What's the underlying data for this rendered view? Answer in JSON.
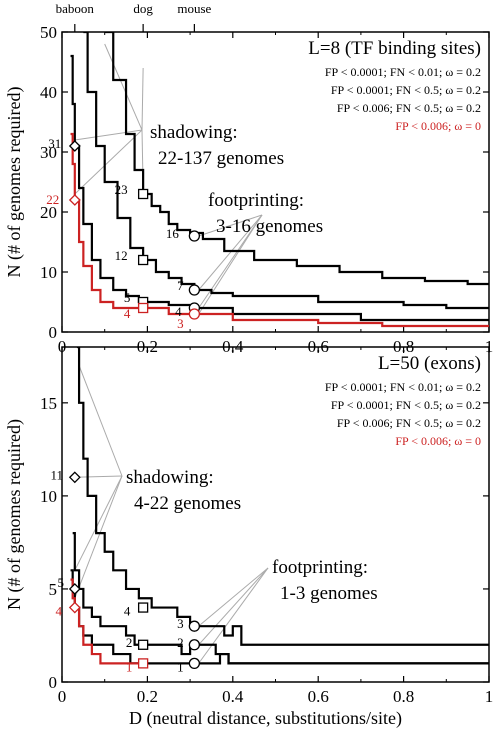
{
  "chart_data": [
    {
      "type": "line",
      "title": "L=8 (TF binding sites)",
      "xlabel": "",
      "ylabel": "N (# of genomes required)",
      "xlim": [
        0,
        1
      ],
      "ylim": [
        0,
        50
      ],
      "xticks": [
        "0",
        "0.2",
        "0.4",
        "0.6",
        "0.8",
        "1"
      ],
      "yticks": [
        "0",
        "10",
        "20",
        "30",
        "40",
        "50"
      ],
      "grid": false,
      "legend_position": "top-right",
      "species": [
        {
          "name": "baboon",
          "x": 0.03
        },
        {
          "name": "dog",
          "x": 0.19
        },
        {
          "name": "mouse",
          "x": 0.31
        }
      ],
      "series": [
        {
          "name": "FP < 0.0001; FN < 0.01; ω = 0.2",
          "color": "#000000",
          "x": [
            0.1,
            0.12,
            0.15,
            0.17,
            0.19,
            0.21,
            0.23,
            0.25,
            0.27,
            0.3,
            0.33,
            0.38,
            0.45,
            0.55,
            0.65,
            0.75,
            0.85,
            0.95,
            1.0
          ],
          "y": [
            50,
            42,
            33,
            27,
            23,
            21,
            20,
            18,
            17,
            16.5,
            15.5,
            13.5,
            12,
            11,
            10,
            9,
            8.5,
            8,
            8
          ]
        },
        {
          "name": "FP < 0.0001; FN < 0.5; ω = 0.2",
          "color": "#000000",
          "x": [
            0.05,
            0.06,
            0.08,
            0.1,
            0.13,
            0.16,
            0.19,
            0.22,
            0.25,
            0.28,
            0.31,
            0.35,
            0.4,
            0.5,
            0.6,
            0.7,
            0.8,
            0.9,
            1.0
          ],
          "y": [
            50,
            40,
            31,
            25,
            19,
            14,
            12,
            10,
            9,
            8,
            7,
            6.5,
            6,
            6,
            5,
            5,
            4.5,
            4,
            4
          ]
        },
        {
          "name": "FP < 0.006; FN < 0.5; ω = 0.2",
          "color": "#000000",
          "x": [
            0.02,
            0.025,
            0.03,
            0.04,
            0.05,
            0.07,
            0.09,
            0.12,
            0.15,
            0.18,
            0.21,
            0.25,
            0.31,
            0.4,
            0.5,
            0.6,
            0.7,
            0.8,
            0.9,
            1.0
          ],
          "y": [
            46,
            38,
            31,
            24,
            18,
            12,
            9,
            7,
            6,
            5,
            5,
            4.5,
            4,
            3,
            3,
            3,
            2,
            2,
            2,
            2
          ]
        },
        {
          "name": "FP < 0.006; ω = 0",
          "color": "#cc2222",
          "x": [
            0.02,
            0.025,
            0.03,
            0.04,
            0.05,
            0.07,
            0.09,
            0.12,
            0.15,
            0.19,
            0.25,
            0.31,
            0.4,
            0.5,
            0.6,
            0.75,
            0.85,
            1.0
          ],
          "y": [
            33,
            28,
            22,
            15,
            11,
            7,
            5,
            4,
            4,
            4,
            3,
            3,
            2,
            2,
            1.5,
            1,
            1,
            1
          ]
        }
      ],
      "markers": [
        {
          "label": "31",
          "x": 0.03,
          "y": 31,
          "shape": "diamond",
          "color": "#000000"
        },
        {
          "label": "22",
          "x": 0.03,
          "y": 22,
          "shape": "diamond",
          "color": "#cc2222"
        },
        {
          "label": "23",
          "x": 0.19,
          "y": 23,
          "shape": "square",
          "color": "#000000"
        },
        {
          "label": "12",
          "x": 0.19,
          "y": 12,
          "shape": "square",
          "color": "#000000"
        },
        {
          "label": "5",
          "x": 0.19,
          "y": 5,
          "shape": "square",
          "color": "#000000"
        },
        {
          "label": "4",
          "x": 0.19,
          "y": 4,
          "shape": "square",
          "color": "#cc2222"
        },
        {
          "label": "16",
          "x": 0.31,
          "y": 16,
          "shape": "circle",
          "color": "#000000"
        },
        {
          "label": "7",
          "x": 0.31,
          "y": 7,
          "shape": "circle",
          "color": "#000000"
        },
        {
          "label": "4",
          "x": 0.31,
          "y": 4,
          "shape": "circle",
          "color": "#000000"
        },
        {
          "label": "3",
          "x": 0.31,
          "y": 3,
          "shape": "circle",
          "color": "#cc2222"
        }
      ],
      "annotations": [
        {
          "lines": [
            "shadowing:",
            "22-137 genomes"
          ]
        },
        {
          "lines": [
            "footprinting:",
            "3-16 genomes"
          ]
        }
      ]
    },
    {
      "type": "line",
      "title": "L=50 (exons)",
      "xlabel": "D (neutral distance, substitutions/site)",
      "ylabel": "N (# of genomes required)",
      "xlim": [
        0,
        1
      ],
      "ylim": [
        0,
        18
      ],
      "xticks": [
        "0",
        "0.2",
        "0.4",
        "0.6",
        "0.8",
        "1"
      ],
      "yticks": [
        "0",
        "5",
        "10",
        "15"
      ],
      "grid": false,
      "legend_position": "top-right",
      "series": [
        {
          "name": "FP < 0.0001; FN < 0.01; ω = 0.2",
          "color": "#000000",
          "x": [
            0.035,
            0.04,
            0.05,
            0.06,
            0.08,
            0.1,
            0.12,
            0.15,
            0.18,
            0.21,
            0.24,
            0.27,
            0.3,
            0.33,
            0.36,
            0.38,
            0.4,
            0.42,
            0.44,
            0.6,
            0.8,
            1.0
          ],
          "y": [
            18,
            15,
            12,
            10,
            8,
            7,
            6,
            5,
            4.5,
            4,
            4,
            3.5,
            3,
            3,
            3,
            2.5,
            3,
            2,
            2,
            2,
            2,
            2
          ]
        },
        {
          "name": "FP < 0.0001; FN < 0.5; ω = 0.2",
          "color": "#000000",
          "x": [
            0.025,
            0.03,
            0.04,
            0.05,
            0.07,
            0.09,
            0.12,
            0.15,
            0.17,
            0.19,
            0.22,
            0.26,
            0.28,
            0.3,
            0.33,
            0.36,
            0.39,
            0.42,
            0.6,
            0.8,
            1.0
          ],
          "y": [
            8,
            6,
            5,
            4,
            3.5,
            3,
            3,
            2.5,
            2,
            2,
            2,
            2,
            1.5,
            2,
            2,
            1.5,
            1,
            1,
            1,
            1,
            1
          ]
        },
        {
          "name": "FP < 0.006; FN < 0.5; ω = 0.2",
          "color": "#000000",
          "x": [
            0.02,
            0.025,
            0.03,
            0.04,
            0.05,
            0.07,
            0.09,
            0.12,
            0.15,
            0.16,
            0.19,
            0.25,
            0.31,
            0.35,
            0.37,
            0.39,
            0.42,
            0.6,
            0.8,
            1.0
          ],
          "y": [
            6,
            5,
            4,
            3,
            2.5,
            2,
            2,
            1.5,
            1.5,
            1,
            1,
            1,
            1,
            1,
            1.5,
            1,
            1,
            1,
            1,
            1
          ]
        },
        {
          "name": "FP < 0.006; ω = 0",
          "color": "#cc2222",
          "x": [
            0.02,
            0.025,
            0.03,
            0.04,
            0.05,
            0.07,
            0.09,
            0.12,
            0.15,
            0.19
          ],
          "y": [
            5.5,
            4.5,
            4,
            3,
            2,
            1.5,
            1,
            1,
            1,
            1
          ]
        }
      ],
      "markers": [
        {
          "label": "11",
          "x": 0.03,
          "y": 11,
          "shape": "diamond",
          "color": "#000000"
        },
        {
          "label": "5",
          "x": 0.03,
          "y": 5,
          "shape": "diamond",
          "color": "#000000"
        },
        {
          "label": "4",
          "x": 0.03,
          "y": 4,
          "shape": "diamond",
          "color": "#cc2222"
        },
        {
          "label": "4",
          "x": 0.19,
          "y": 4,
          "shape": "square",
          "color": "#000000"
        },
        {
          "label": "2",
          "x": 0.19,
          "y": 2,
          "shape": "square",
          "color": "#000000"
        },
        {
          "label": "1",
          "x": 0.19,
          "y": 1,
          "shape": "square",
          "color": "#cc2222"
        },
        {
          "label": "3",
          "x": 0.31,
          "y": 3,
          "shape": "circle",
          "color": "#000000"
        },
        {
          "label": "2",
          "x": 0.31,
          "y": 2,
          "shape": "circle",
          "color": "#000000"
        },
        {
          "label": "1",
          "x": 0.31,
          "y": 1,
          "shape": "circle",
          "color": "#000000"
        }
      ],
      "annotations": [
        {
          "lines": [
            "shadowing:",
            "4-22 genomes"
          ]
        },
        {
          "lines": [
            "footprinting:",
            "1-3 genomes"
          ]
        }
      ]
    }
  ]
}
